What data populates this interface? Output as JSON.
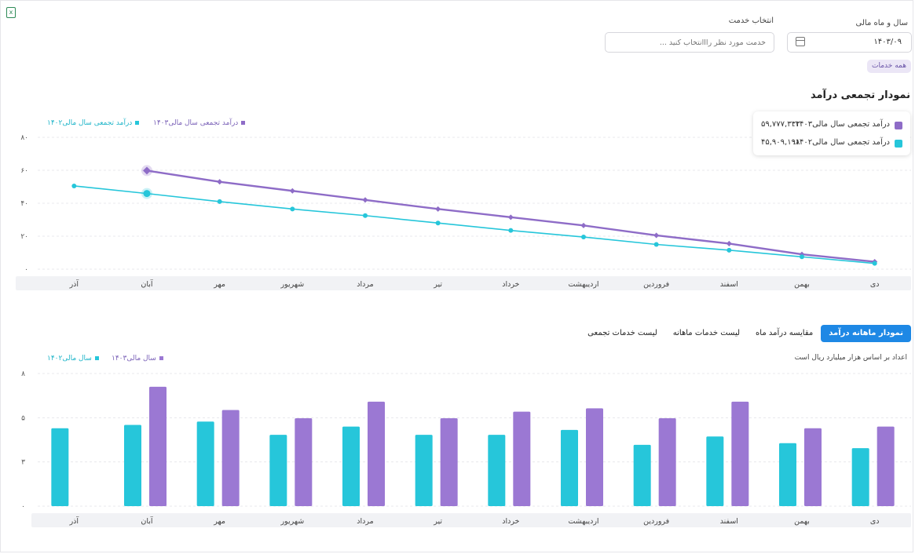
{
  "filters": {
    "year_month_label": "سال و ماه مالی",
    "year_month_value": "۱۴۰۳/۰۹",
    "service_label": "انتخاب خدمت",
    "service_placeholder": "خدمت مورد نظر رااانتخاب کنید ...",
    "all_services_chip": "همه خدمات"
  },
  "cumulative_section": {
    "title": "نمودار تجمعی درآمد",
    "legend": [
      "درآمد تجمعی سال مالی۱۴۰۳",
      "درآمد تجمعی سال مالی۱۴۰۲"
    ],
    "tooltip": {
      "row1_label": "درآمد تجمعی سال مالی۱۴۰۳:",
      "row1_value": "۵۹,۷۷۷,۳۳۳",
      "row2_label": "درآمد تجمعی سال مالی۱۴۰۲:",
      "row2_value": "۴۵,۹۰۹,۱۹۸"
    }
  },
  "tabs": [
    "نمودار ماهانه درآمد",
    "مقایسه درآمد ماه",
    "لیست خدمات ماهانه",
    "لیست خدمات تجمعی"
  ],
  "monthly_section": {
    "note": "اعداد بر اساس هزار میلیارد ریال است",
    "legend": [
      "سال مالی۱۴۰۳",
      "سال مالی۱۴۰۲"
    ]
  },
  "colors": {
    "purple": "#8e6cc7",
    "cyan": "#26c6da",
    "accent": "#1e88e5"
  },
  "chart_data": [
    {
      "type": "line",
      "title": "نمودار تجمعی درآمد",
      "categories": [
        "دی",
        "بهمن",
        "اسفند",
        "فروردین",
        "اردیبهشت",
        "خرداد",
        "تیر",
        "مرداد",
        "شهریور",
        "مهر",
        "آبان",
        "آذر"
      ],
      "yticks": [
        "۰",
        "۲۰",
        "۴۰",
        "۶۰",
        "۸۰"
      ],
      "ylim": [
        0,
        80
      ],
      "grid": true,
      "legend_position": "top-left",
      "series": [
        {
          "name": "درآمد تجمعی سال مالی۱۴۰۳",
          "color": "#8e6cc7",
          "values": [
            4.5,
            9,
            15.5,
            20.5,
            26.5,
            31.5,
            36.5,
            42,
            47.5,
            53,
            59.8,
            null
          ]
        },
        {
          "name": "درآمد تجمعی سال مالی۱۴۰۲",
          "color": "#26c6da",
          "values": [
            3.5,
            7.5,
            11.5,
            15,
            19.5,
            23.5,
            28,
            32.5,
            36.5,
            41,
            45.9,
            50.5
          ]
        }
      ]
    },
    {
      "type": "bar",
      "title": "نمودار ماهانه درآمد",
      "categories": [
        "دی",
        "بهمن",
        "اسفند",
        "فروردین",
        "اردیبهشت",
        "خرداد",
        "تیر",
        "مرداد",
        "شهریور",
        "مهر",
        "آبان",
        "آذر"
      ],
      "yticks": [
        "۰",
        "۳",
        "۵",
        "۸"
      ],
      "ylim": [
        0,
        8
      ],
      "grid": true,
      "legend_position": "top-left",
      "series": [
        {
          "name": "سال مالی۱۴۰۲",
          "color": "#26c6da",
          "values": [
            3.5,
            3.8,
            4.2,
            3.7,
            4.6,
            4.3,
            4.3,
            4.8,
            4.3,
            5.1,
            4.9,
            4.7
          ]
        },
        {
          "name": "سال مالی۱۴۰۳",
          "color": "#9b78d3",
          "values": [
            4.8,
            4.7,
            6.3,
            5.3,
            5.9,
            5.7,
            5.3,
            6.3,
            5.3,
            5.8,
            7.2,
            null
          ]
        }
      ]
    }
  ]
}
